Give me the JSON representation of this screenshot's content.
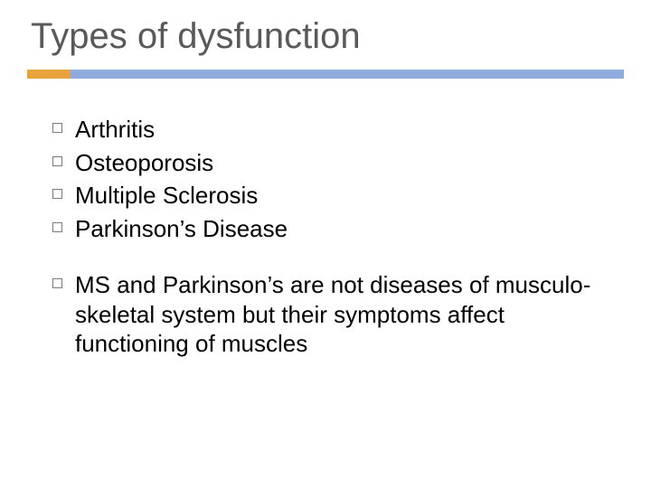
{
  "title": "Types of dysfunction",
  "title_color": "#595959",
  "title_fontsize": 40,
  "accent_color": "#e8a33d",
  "divider_color": "#8faadc",
  "background_color": "#ffffff",
  "bullet_border_color": "#7a7a7a",
  "body_text_color": "#000000",
  "body_fontsize": 26,
  "items_group1": [
    "Arthritis",
    "Osteoporosis",
    "Multiple Sclerosis",
    "Parkinson’s Disease"
  ],
  "items_group2": [
    "MS and Parkinson’s are not diseases of musculo-skeletal system but their symptoms affect functioning of muscles"
  ]
}
